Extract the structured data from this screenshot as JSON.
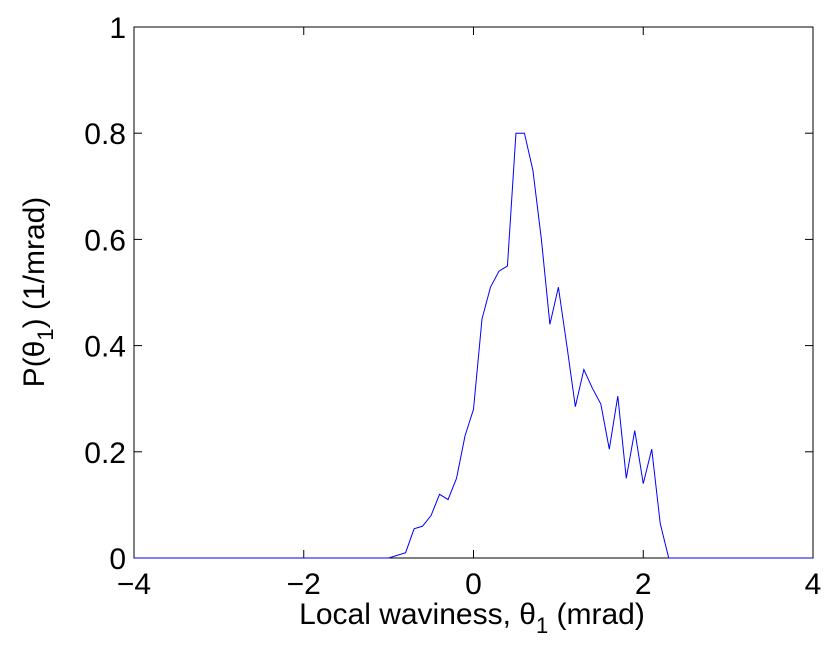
{
  "chart_data": {
    "type": "line",
    "title": "",
    "xlabel": {
      "prefix": "Local waviness, ",
      "symbol": "θ",
      "subscript": "1",
      "suffix": " (mrad)"
    },
    "ylabel": {
      "prefix": "P(",
      "symbol": "θ",
      "subscript": "1",
      "suffix": ")  (1/mrad)"
    },
    "xlim": [
      -4,
      4
    ],
    "ylim": [
      0,
      1
    ],
    "xticks": [
      -4,
      -2,
      0,
      2,
      4
    ],
    "xtick_labels": [
      "−4",
      "−2",
      "0",
      "2",
      "4"
    ],
    "yticks": [
      0,
      0.2,
      0.4,
      0.6,
      0.8,
      1
    ],
    "ytick_labels": [
      "0",
      "0.2",
      "0.4",
      "0.6",
      "0.8",
      "1"
    ],
    "grid": false,
    "legend": "none",
    "line_color": "#0000ff",
    "series": [
      {
        "x": [
          -4,
          -1.0,
          -0.8,
          -0.7,
          -0.6,
          -0.5,
          -0.4,
          -0.3,
          -0.2,
          -0.1,
          0.0,
          0.1,
          0.2,
          0.3,
          0.4,
          0.5,
          0.6,
          0.7,
          0.8,
          0.9,
          1.0,
          1.1,
          1.2,
          1.3,
          1.4,
          1.5,
          1.6,
          1.7,
          1.8,
          1.9,
          2.0,
          2.1,
          2.2,
          2.3,
          4
        ],
        "y": [
          0,
          0,
          0.01,
          0.055,
          0.06,
          0.08,
          0.12,
          0.11,
          0.15,
          0.23,
          0.28,
          0.45,
          0.51,
          0.54,
          0.55,
          0.8,
          0.8,
          0.73,
          0.6,
          0.44,
          0.51,
          0.4,
          0.285,
          0.355,
          0.32,
          0.29,
          0.205,
          0.305,
          0.15,
          0.24,
          0.14,
          0.205,
          0.065,
          0,
          0
        ]
      }
    ]
  }
}
